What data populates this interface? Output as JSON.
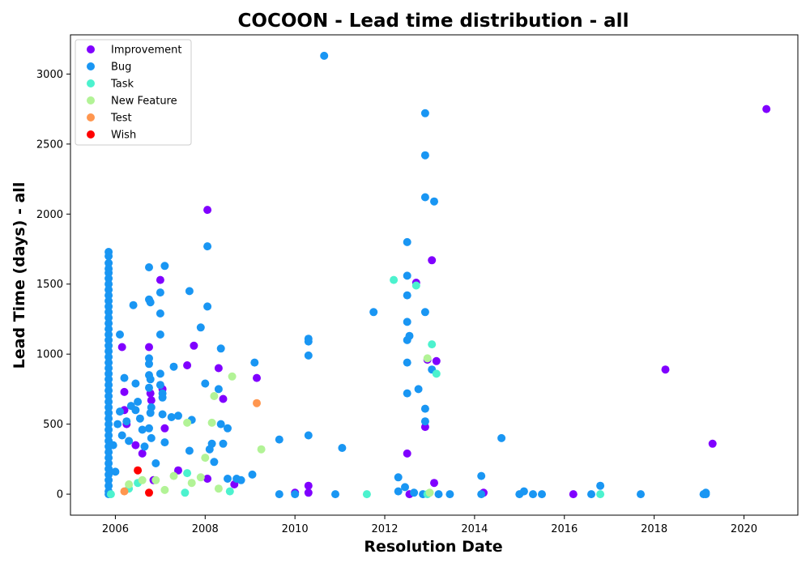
{
  "chart_data": {
    "type": "scatter",
    "title": "COCOON - Lead time distribution - all",
    "xlabel": "Resolution Date",
    "ylabel": "Lead Time (days) - all",
    "xlim": [
      2005.0,
      2021.2
    ],
    "ylim": [
      -150,
      3280
    ],
    "xticks": [
      2006,
      2008,
      2010,
      2012,
      2014,
      2016,
      2018,
      2020
    ],
    "yticks": [
      0,
      500,
      1000,
      1500,
      2000,
      2500,
      3000
    ],
    "grid": false,
    "legend_position": "top-left",
    "series": [
      {
        "name": "Improvement",
        "color": "#8000ff",
        "points": [
          [
            2006.15,
            1050
          ],
          [
            2006.2,
            730
          ],
          [
            2006.2,
            600
          ],
          [
            2006.25,
            500
          ],
          [
            2006.45,
            350
          ],
          [
            2006.6,
            290
          ],
          [
            2006.75,
            1050
          ],
          [
            2006.78,
            720
          ],
          [
            2006.8,
            670
          ],
          [
            2006.85,
            100
          ],
          [
            2007.0,
            1530
          ],
          [
            2007.05,
            750
          ],
          [
            2007.1,
            470
          ],
          [
            2007.4,
            170
          ],
          [
            2007.6,
            920
          ],
          [
            2007.75,
            1060
          ],
          [
            2008.05,
            2030
          ],
          [
            2008.3,
            900
          ],
          [
            2008.4,
            680
          ],
          [
            2008.05,
            110
          ],
          [
            2008.65,
            70
          ],
          [
            2009.15,
            830
          ],
          [
            2010.3,
            60
          ],
          [
            2010.3,
            10
          ],
          [
            2010.0,
            10
          ],
          [
            2012.5,
            290
          ],
          [
            2012.55,
            0
          ],
          [
            2012.7,
            1510
          ],
          [
            2012.9,
            480
          ],
          [
            2012.95,
            960
          ],
          [
            2013.05,
            1670
          ],
          [
            2013.1,
            80
          ],
          [
            2013.15,
            950
          ],
          [
            2014.2,
            10
          ],
          [
            2016.2,
            0
          ],
          [
            2018.25,
            890
          ],
          [
            2019.3,
            360
          ],
          [
            2020.5,
            2750
          ]
        ]
      },
      {
        "name": "Bug",
        "color": "#1996f3",
        "points": [
          [
            2005.85,
            1730
          ],
          [
            2005.85,
            1700
          ],
          [
            2005.85,
            1650
          ],
          [
            2005.85,
            1610
          ],
          [
            2005.85,
            1580
          ],
          [
            2005.85,
            1540
          ],
          [
            2005.85,
            1500
          ],
          [
            2005.85,
            1460
          ],
          [
            2005.85,
            1420
          ],
          [
            2005.85,
            1380
          ],
          [
            2005.85,
            1340
          ],
          [
            2005.85,
            1300
          ],
          [
            2005.85,
            1260
          ],
          [
            2005.85,
            1220
          ],
          [
            2005.85,
            1180
          ],
          [
            2005.85,
            1140
          ],
          [
            2005.85,
            1100
          ],
          [
            2005.85,
            1060
          ],
          [
            2005.85,
            1020
          ],
          [
            2005.85,
            980
          ],
          [
            2005.85,
            940
          ],
          [
            2005.85,
            900
          ],
          [
            2005.85,
            860
          ],
          [
            2005.85,
            820
          ],
          [
            2005.85,
            780
          ],
          [
            2005.85,
            740
          ],
          [
            2005.85,
            700
          ],
          [
            2005.85,
            660
          ],
          [
            2005.85,
            620
          ],
          [
            2005.85,
            580
          ],
          [
            2005.85,
            540
          ],
          [
            2005.85,
            500
          ],
          [
            2005.85,
            460
          ],
          [
            2005.85,
            420
          ],
          [
            2005.85,
            380
          ],
          [
            2005.85,
            340
          ],
          [
            2005.85,
            300
          ],
          [
            2005.85,
            260
          ],
          [
            2005.85,
            220
          ],
          [
            2005.85,
            180
          ],
          [
            2005.85,
            140
          ],
          [
            2005.85,
            100
          ],
          [
            2005.85,
            60
          ],
          [
            2005.85,
            20
          ],
          [
            2005.85,
            0
          ],
          [
            2005.95,
            350
          ],
          [
            2006.0,
            160
          ],
          [
            2006.05,
            500
          ],
          [
            2006.1,
            1140
          ],
          [
            2006.1,
            590
          ],
          [
            2006.15,
            420
          ],
          [
            2006.2,
            830
          ],
          [
            2006.25,
            520
          ],
          [
            2006.3,
            380
          ],
          [
            2006.35,
            630
          ],
          [
            2006.4,
            1350
          ],
          [
            2006.45,
            790
          ],
          [
            2006.45,
            600
          ],
          [
            2006.5,
            660
          ],
          [
            2006.55,
            540
          ],
          [
            2006.6,
            460
          ],
          [
            2006.65,
            340
          ],
          [
            2006.75,
            1620
          ],
          [
            2006.75,
            1390
          ],
          [
            2006.78,
            1370
          ],
          [
            2006.75,
            970
          ],
          [
            2006.75,
            930
          ],
          [
            2006.75,
            850
          ],
          [
            2006.78,
            820
          ],
          [
            2006.75,
            760
          ],
          [
            2006.8,
            620
          ],
          [
            2006.78,
            580
          ],
          [
            2006.75,
            470
          ],
          [
            2006.8,
            400
          ],
          [
            2006.9,
            220
          ],
          [
            2007.0,
            1440
          ],
          [
            2007.0,
            1290
          ],
          [
            2007.0,
            1140
          ],
          [
            2007.0,
            860
          ],
          [
            2007.0,
            780
          ],
          [
            2007.05,
            720
          ],
          [
            2007.05,
            690
          ],
          [
            2007.05,
            570
          ],
          [
            2007.1,
            370
          ],
          [
            2007.1,
            1630
          ],
          [
            2007.25,
            550
          ],
          [
            2007.3,
            910
          ],
          [
            2007.4,
            560
          ],
          [
            2007.65,
            1450
          ],
          [
            2007.7,
            530
          ],
          [
            2007.65,
            310
          ],
          [
            2007.9,
            1190
          ],
          [
            2008.0,
            790
          ],
          [
            2008.05,
            1770
          ],
          [
            2008.05,
            1340
          ],
          [
            2008.1,
            320
          ],
          [
            2008.15,
            360
          ],
          [
            2008.3,
            750
          ],
          [
            2008.35,
            1040
          ],
          [
            2008.35,
            500
          ],
          [
            2008.4,
            360
          ],
          [
            2008.5,
            470
          ],
          [
            2008.2,
            230
          ],
          [
            2008.5,
            110
          ],
          [
            2008.7,
            110
          ],
          [
            2008.8,
            100
          ],
          [
            2009.05,
            140
          ],
          [
            2009.1,
            940
          ],
          [
            2009.65,
            390
          ],
          [
            2009.65,
            0
          ],
          [
            2010.0,
            0
          ],
          [
            2010.3,
            1110
          ],
          [
            2010.3,
            1090
          ],
          [
            2010.3,
            990
          ],
          [
            2010.3,
            420
          ],
          [
            2010.65,
            3130
          ],
          [
            2010.9,
            0
          ],
          [
            2011.05,
            330
          ],
          [
            2011.75,
            1300
          ],
          [
            2012.3,
            120
          ],
          [
            2012.3,
            20
          ],
          [
            2012.45,
            50
          ],
          [
            2012.5,
            1800
          ],
          [
            2012.5,
            1560
          ],
          [
            2012.5,
            1420
          ],
          [
            2012.5,
            1230
          ],
          [
            2012.5,
            1100
          ],
          [
            2012.55,
            1130
          ],
          [
            2012.5,
            940
          ],
          [
            2012.5,
            720
          ],
          [
            2012.75,
            750
          ],
          [
            2012.65,
            10
          ],
          [
            2012.9,
            2720
          ],
          [
            2012.9,
            2420
          ],
          [
            2012.9,
            2120
          ],
          [
            2012.9,
            1300
          ],
          [
            2012.9,
            610
          ],
          [
            2012.9,
            520
          ],
          [
            2012.85,
            0
          ],
          [
            2013.05,
            890
          ],
          [
            2013.1,
            2090
          ],
          [
            2013.2,
            0
          ],
          [
            2013.45,
            0
          ],
          [
            2014.15,
            130
          ],
          [
            2014.15,
            0
          ],
          [
            2014.6,
            400
          ],
          [
            2015.0,
            0
          ],
          [
            2015.1,
            20
          ],
          [
            2015.3,
            0
          ],
          [
            2015.5,
            0
          ],
          [
            2016.6,
            0
          ],
          [
            2016.8,
            60
          ],
          [
            2017.7,
            0
          ],
          [
            2019.15,
            0
          ],
          [
            2019.15,
            10
          ],
          [
            2019.1,
            0
          ]
        ]
      },
      {
        "name": "Task",
        "color": "#4cf2ce",
        "points": [
          [
            2005.9,
            0
          ],
          [
            2006.3,
            40
          ],
          [
            2006.5,
            80
          ],
          [
            2007.55,
            10
          ],
          [
            2007.6,
            150
          ],
          [
            2008.55,
            20
          ],
          [
            2011.6,
            0
          ],
          [
            2012.2,
            1530
          ],
          [
            2012.7,
            1490
          ],
          [
            2012.95,
            0
          ],
          [
            2013.05,
            1070
          ],
          [
            2013.15,
            860
          ],
          [
            2016.8,
            0
          ]
        ]
      },
      {
        "name": "New Feature",
        "color": "#b2f396",
        "points": [
          [
            2006.3,
            70
          ],
          [
            2006.6,
            100
          ],
          [
            2006.9,
            100
          ],
          [
            2007.1,
            30
          ],
          [
            2007.3,
            130
          ],
          [
            2007.6,
            510
          ],
          [
            2007.7,
            80
          ],
          [
            2007.9,
            120
          ],
          [
            2008.0,
            260
          ],
          [
            2008.2,
            700
          ],
          [
            2008.15,
            510
          ],
          [
            2008.6,
            840
          ],
          [
            2008.3,
            40
          ],
          [
            2009.25,
            320
          ],
          [
            2012.95,
            970
          ],
          [
            2013.0,
            10
          ]
        ]
      },
      {
        "name": "Test",
        "color": "#ff964f",
        "points": [
          [
            2006.2,
            20
          ],
          [
            2009.15,
            650
          ]
        ]
      },
      {
        "name": "Wish",
        "color": "#ff0000",
        "points": [
          [
            2006.5,
            170
          ],
          [
            2006.75,
            10
          ]
        ]
      }
    ]
  }
}
